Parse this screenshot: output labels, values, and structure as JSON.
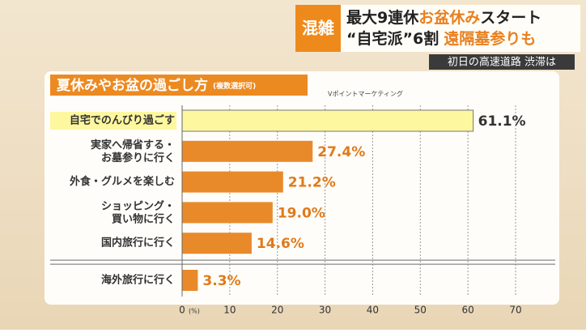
{
  "banner": {
    "tag": "混雑",
    "line1_a": "最大9連休",
    "line1_b": "お盆休み",
    "line1_c": "スタート",
    "line2_a": "“自宅派”6割",
    "line2_b": "遠隔墓参りも",
    "ticker": "初日の高速道路 渋滞は"
  },
  "chart_data": {
    "type": "hbar",
    "title": "夏休みやお盆の過ごし方",
    "subtitle": "(複数選択可)",
    "source": "Vポイントマーケティング",
    "categories": [
      "自宅でのんびり過ごす",
      "実家へ帰省する・\nお墓参りに行く",
      "外食・グルメを楽しむ",
      "ショッピング・\n買い物に行く",
      "国内旅行に行く",
      "海外旅行に行く"
    ],
    "values": [
      61.1,
      27.4,
      21.2,
      19.0,
      14.6,
      3.3
    ],
    "value_labels": [
      "61.1%",
      "27.4%",
      "21.2%",
      "19.0%",
      "14.6%",
      "3.3%"
    ],
    "colors": [
      "#fdf7a0",
      "#e98a2a",
      "#e98a2a",
      "#e98a2a",
      "#e98a2a",
      "#e98a2a"
    ],
    "label_colors": [
      "#333333",
      "#e07a1a",
      "#e07a1a",
      "#e07a1a",
      "#e07a1a",
      "#e07a1a"
    ],
    "highlight_first": true,
    "axis_break_after": 4,
    "xlim": [
      0,
      70
    ],
    "xticks": [
      0,
      10,
      20,
      30,
      40,
      50,
      60,
      70
    ],
    "x_unit": "(%)",
    "grid": true
  }
}
